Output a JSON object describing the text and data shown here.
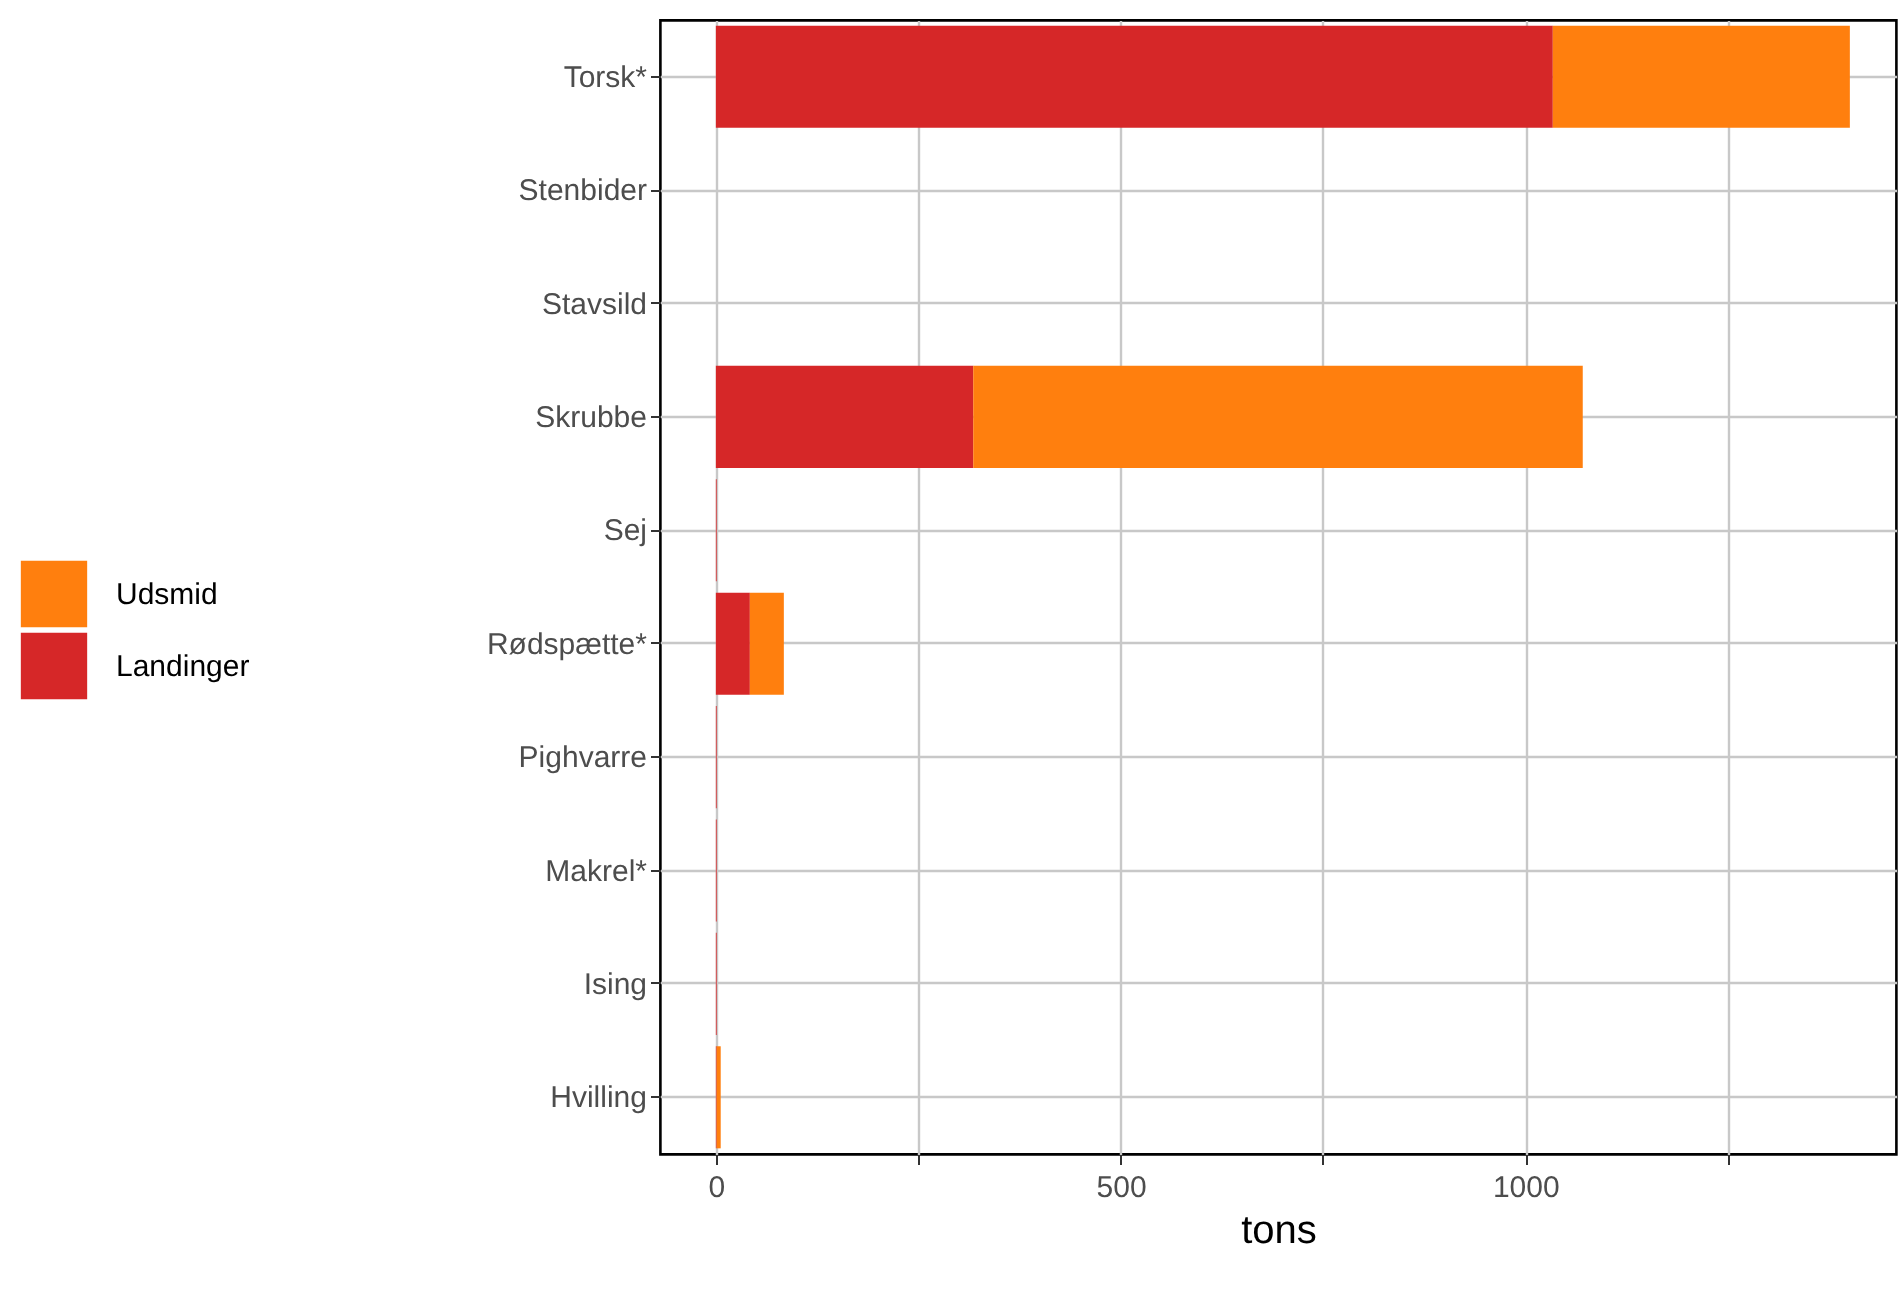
{
  "chart_data": {
    "type": "bar",
    "orientation": "horizontal",
    "stacked": true,
    "xlabel": "tons",
    "categories": [
      "Torsk*",
      "Stenbider",
      "Stavsild",
      "Skrubbe",
      "Sej",
      "Rødspætte*",
      "Pighvarre",
      "Makrel*",
      "Ising",
      "Hvilling"
    ],
    "series": [
      {
        "name": "Landinger",
        "color": "#d62728",
        "values": [
          1034,
          0,
          0,
          318,
          1,
          42,
          1,
          1,
          1,
          1
        ]
      },
      {
        "name": "Udsmid",
        "color": "#ff7f0e",
        "values": [
          367,
          0,
          0,
          753,
          0,
          42,
          0,
          0,
          0,
          5
        ]
      }
    ],
    "xlim": [
      -69,
      1458
    ],
    "xticks": [
      {
        "value": 250,
        "label": null
      },
      0,
      500,
      1000,
      {
        "value": 750,
        "label": null
      },
      {
        "value": 1250,
        "label": null
      }
    ],
    "grid": true,
    "legend": "left"
  }
}
